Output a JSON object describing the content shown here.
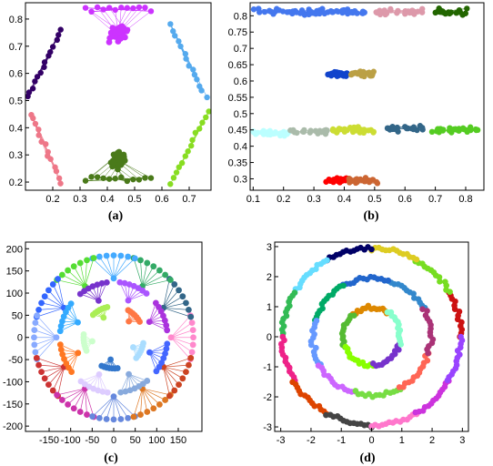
{
  "figure": {
    "panels": [
      {
        "label": "(a)"
      },
      {
        "label": "(b)"
      },
      {
        "label": "(c)"
      },
      {
        "label": "(d)"
      }
    ]
  },
  "chart_data": [
    {
      "type": "scatter",
      "panel_label": "(a)",
      "xlim": [
        0.1,
        0.78
      ],
      "ylim": [
        0.17,
        0.86
      ],
      "xticks": [
        0.2,
        0.3,
        0.4,
        0.5,
        0.6,
        0.7
      ],
      "yticks": [
        0.2,
        0.3,
        0.4,
        0.5,
        0.6,
        0.7,
        0.8
      ],
      "grid": false,
      "series": [
        {
          "color": "#cc33ff",
          "shape": "star-hub",
          "center": [
            0.44,
            0.745
          ],
          "hub": [
            0.44,
            0.835
          ],
          "spread": [
            0.04,
            0.035
          ],
          "n": 60
        },
        {
          "color": "#4a7a1a",
          "shape": "star-hub",
          "center": [
            0.44,
            0.28
          ],
          "hub": [
            0.44,
            0.21
          ],
          "spread": [
            0.035,
            0.04
          ],
          "n": 60
        },
        {
          "color": "#330066",
          "shape": "arc",
          "from": [
            0.23,
            0.76
          ],
          "to": [
            0.11,
            0.51
          ],
          "n": 14
        },
        {
          "color": "#ee7788",
          "shape": "arc",
          "from": [
            0.12,
            0.45
          ],
          "to": [
            0.23,
            0.2
          ],
          "n": 14
        },
        {
          "color": "#55aaee",
          "shape": "arc",
          "from": [
            0.63,
            0.78
          ],
          "to": [
            0.76,
            0.51
          ],
          "n": 14
        },
        {
          "color": "#88dd22",
          "shape": "arc",
          "from": [
            0.77,
            0.46
          ],
          "to": [
            0.63,
            0.19
          ],
          "n": 14
        }
      ]
    },
    {
      "type": "scatter",
      "panel_label": "(b)",
      "xlim": [
        0.09,
        0.86
      ],
      "ylim": [
        0.265,
        0.84
      ],
      "xticks": [
        0.1,
        0.2,
        0.3,
        0.4,
        0.5,
        0.6,
        0.7,
        0.8
      ],
      "yticks": [
        0.3,
        0.35,
        0.4,
        0.45,
        0.5,
        0.55,
        0.6,
        0.65,
        0.7,
        0.75,
        0.8
      ],
      "grid": false,
      "series": [
        {
          "color": "#4477ee",
          "x": [
            0.1,
            0.47
          ],
          "y": 0.812,
          "n": 60
        },
        {
          "color": "#dd99aa",
          "x": [
            0.5,
            0.66
          ],
          "y": 0.812,
          "n": 25
        },
        {
          "color": "#226600",
          "x": [
            0.69,
            0.82
          ],
          "y": 0.812,
          "n": 20
        },
        {
          "color": "#1144cc",
          "x": [
            0.34,
            0.41
          ],
          "y": 0.62,
          "n": 25
        },
        {
          "color": "#bba044",
          "x": [
            0.42,
            0.5
          ],
          "y": 0.62,
          "n": 25
        },
        {
          "color": "#bbffff",
          "x": [
            0.1,
            0.22
          ],
          "y": 0.44,
          "n": 25
        },
        {
          "color": "#aabbaa",
          "x": [
            0.22,
            0.35
          ],
          "y": 0.445,
          "n": 25
        },
        {
          "color": "#ccdd33",
          "x": [
            0.36,
            0.5
          ],
          "y": 0.45,
          "n": 30
        },
        {
          "color": "#336688",
          "x": [
            0.54,
            0.66
          ],
          "y": 0.455,
          "n": 25
        },
        {
          "color": "#55cc22",
          "x": [
            0.68,
            0.84
          ],
          "y": 0.45,
          "n": 30
        },
        {
          "color": "#ff0000",
          "x": [
            0.34,
            0.41
          ],
          "y": 0.295,
          "n": 30
        },
        {
          "color": "#cc6633",
          "x": [
            0.41,
            0.51
          ],
          "y": 0.295,
          "n": 30
        }
      ]
    },
    {
      "type": "scatter",
      "panel_label": "(c)",
      "xlim": [
        -205,
        205
      ],
      "ylim": [
        -212,
        215
      ],
      "xticks": [
        -150,
        -100,
        -50,
        0,
        50,
        100,
        150
      ],
      "yticks": [
        -200,
        -150,
        -100,
        -50,
        0,
        50,
        100,
        150,
        200
      ],
      "grid": false,
      "rings": [
        {
          "radius": 185,
          "colors": [
            "#ff88cc",
            "#336688",
            "#33aa66",
            "#44aaff",
            "#55dd33",
            "#3366ff",
            "#88aaff",
            "#cc3333",
            "#cc33aa",
            "#6688dd",
            "#dd7722",
            "#cc4422"
          ]
        },
        {
          "radius": 125,
          "colors": [
            "#aa33dd",
            "#aa55ff",
            "#7733cc",
            "#33aaff",
            "#ff7722",
            "#ddccff",
            "#88aadd",
            "#4466ff"
          ]
        },
        {
          "radius": 70,
          "colors": [
            "#ff7744",
            "#aaee55",
            "#ccffcc",
            "#3377cc",
            "#aaddff"
          ]
        }
      ]
    },
    {
      "type": "scatter",
      "panel_label": "(d)",
      "xlim": [
        -3.2,
        3.2
      ],
      "ylim": [
        -3.15,
        3.15
      ],
      "xticks": [
        -3,
        -2,
        -1,
        0,
        1,
        2,
        3
      ],
      "yticks": [
        -3,
        -2,
        -1,
        0,
        1,
        2,
        3
      ],
      "grid": false,
      "outer_ring": {
        "radius": 2.95,
        "colors": [
          "#cc1111",
          "#77dd22",
          "#ddcc22",
          "#000066",
          "#66ddff",
          "#33bb55",
          "#ee2288",
          "#dd4400",
          "#444444",
          "#ff77cc",
          "#cc33dd",
          "#9944ff"
        ]
      },
      "middle_ring": {
        "radius": 1.95,
        "colors": [
          "#3388cc",
          "#2266cc",
          "#00aa66",
          "#6699ff",
          "#cc66ff",
          "#77dd44",
          "#ff6655",
          "#aa3377"
        ]
      },
      "inner_ring": {
        "radius": 0.95,
        "colors": [
          "#dd8800",
          "#55bb33",
          "#88ff00",
          "#7733cc",
          "#88ffcc"
        ]
      }
    }
  ]
}
